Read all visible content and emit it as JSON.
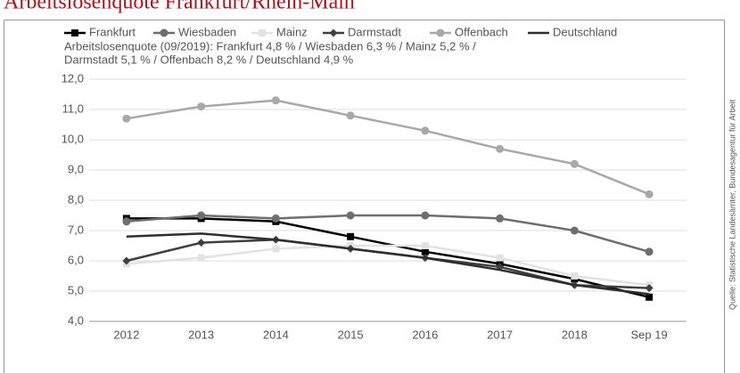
{
  "chart_data": {
    "type": "line",
    "title": "Arbeitslosenquote Frankfurt/Rhein-Main",
    "annotation_lines": [
      "Arbeitslosenquote (09/2019): Frankfurt 4,8 % / Wiesbaden 6,3 % / Mainz 5,2 % /",
      "Darmstadt 5,1 % / Offenbach  8,2 % / Deutschland 4,9 %"
    ],
    "source": "Quelle: Statistische Landesämter, Bundesagentur für Arbeit",
    "categories": [
      "2012",
      "2013",
      "2014",
      "2015",
      "2016",
      "2017",
      "2018",
      "Sep 19"
    ],
    "series": [
      {
        "name": "Frankfurt",
        "color": "#000000",
        "marker": "square",
        "values": [
          7.4,
          7.4,
          7.3,
          6.8,
          6.3,
          5.9,
          5.4,
          4.8
        ]
      },
      {
        "name": "Wiesbaden",
        "color": "#6e6e6e",
        "marker": "circle",
        "values": [
          7.3,
          7.5,
          7.4,
          7.5,
          7.5,
          7.4,
          7.0,
          6.3
        ]
      },
      {
        "name": "Mainz",
        "color": "#e2e2e2",
        "marker": "square",
        "values": [
          5.9,
          6.1,
          6.4,
          6.5,
          6.5,
          6.1,
          5.5,
          5.2
        ]
      },
      {
        "name": "Darmstadt",
        "color": "#404040",
        "marker": "diamond",
        "values": [
          6.0,
          6.6,
          6.7,
          6.4,
          6.1,
          5.8,
          5.2,
          5.1
        ]
      },
      {
        "name": "Offenbach",
        "color": "#a8a8a8",
        "marker": "circle",
        "values": [
          10.7,
          11.1,
          11.3,
          10.8,
          10.3,
          9.7,
          9.2,
          8.2
        ]
      },
      {
        "name": "Deutschland",
        "color": "#2e2e2e",
        "marker": "none",
        "values": [
          6.8,
          6.9,
          6.7,
          6.4,
          6.1,
          5.7,
          5.2,
          4.9
        ]
      }
    ],
    "ylim": [
      4,
      12
    ],
    "yticks": [
      {
        "value": 4,
        "label": "4,0"
      },
      {
        "value": 5,
        "label": "5,0"
      },
      {
        "value": 6,
        "label": "6,0"
      },
      {
        "value": 7,
        "label": "7,0"
      },
      {
        "value": 8,
        "label": "8,0"
      },
      {
        "value": 9,
        "label": "9,0"
      },
      {
        "value": 10,
        "label": "10,0"
      },
      {
        "value": 11,
        "label": "11,0"
      },
      {
        "value": 12,
        "label": "12,0"
      }
    ],
    "grid": true
  }
}
